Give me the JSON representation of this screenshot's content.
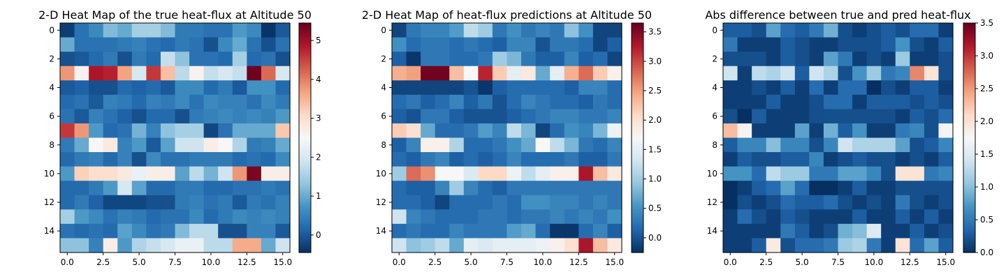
{
  "colormap": {
    "name": "RdBu_r",
    "stops": [
      "#053061",
      "#2166ac",
      "#4393c3",
      "#92c5de",
      "#d1e5f0",
      "#f7f7f7",
      "#fddbc7",
      "#f4a582",
      "#d6604d",
      "#b2182b",
      "#67001f"
    ]
  },
  "chart_data": [
    {
      "type": "heatmap",
      "title": "2-D Heat Map of the true heat-flux at Altitude 50",
      "x_ticks": [
        "0.0",
        "2.5",
        "5.0",
        "7.5",
        "10.0",
        "12.5",
        "15.0"
      ],
      "y_ticks": [
        "0",
        "2",
        "4",
        "6",
        "8",
        "10",
        "12",
        "14"
      ],
      "colorbar": {
        "vmin": -0.45,
        "vmax": 5.45,
        "ticks": [
          "0",
          "1",
          "2",
          "3",
          "4",
          "5"
        ]
      },
      "values": [
        [
          -0.3,
          0.3,
          0.6,
          1.2,
          1.0,
          1.5,
          1.5,
          1.2,
          0.4,
          0.4,
          0.3,
          0.3,
          0.8,
          0.6,
          -0.4,
          0.0
        ],
        [
          1.0,
          0.3,
          0.3,
          0.3,
          0.4,
          0.5,
          0.3,
          0.2,
          0.4,
          0.3,
          -0.1,
          0.6,
          1.0,
          0.3,
          -0.1,
          0.3
        ],
        [
          -0.1,
          0.0,
          0.2,
          0.4,
          -0.1,
          0.4,
          0.2,
          1.8,
          1.3,
          0.3,
          0.3,
          0.2,
          1.5,
          0.2,
          0.3,
          -0.1
        ],
        [
          3.8,
          2.6,
          4.9,
          4.8,
          3.7,
          2.0,
          4.6,
          3.4,
          1.7,
          2.6,
          1.8,
          2.0,
          1.8,
          5.4,
          4.2,
          2.0
        ],
        [
          0.0,
          0.1,
          -0.1,
          -0.1,
          0.2,
          0.1,
          0.2,
          0.0,
          0.6,
          0.6,
          0.2,
          0.4,
          0.0,
          0.7,
          0.7,
          0.2
        ],
        [
          0.2,
          0.3,
          0.0,
          0.5,
          0.4,
          0.2,
          0.5,
          0.4,
          0.6,
          0.3,
          0.6,
          0.5,
          0.5,
          0.3,
          0.6,
          0.4
        ],
        [
          0.3,
          0.0,
          0.5,
          0.3,
          0.1,
          -0.1,
          0.2,
          0.2,
          -0.1,
          0.4,
          0.5,
          0.6,
          0.5,
          0.6,
          0.5,
          0.8
        ],
        [
          4.6,
          3.8,
          0.8,
          0.2,
          0.3,
          1.1,
          0.5,
          1.3,
          1.5,
          1.5,
          -0.2,
          0.3,
          1.0,
          1.0,
          1.0,
          3.3
        ],
        [
          0.4,
          1.0,
          2.5,
          2.8,
          0.5,
          0.8,
          0.0,
          0.9,
          1.9,
          1.9,
          2.7,
          2.5,
          1.6,
          0.4,
          0.5,
          1.0
        ],
        [
          0.2,
          0.4,
          0.5,
          0.2,
          0.5,
          -0.1,
          0.6,
          0.3,
          0.3,
          0.4,
          0.4,
          0.4,
          0.2,
          0.3,
          0.2,
          0.6
        ],
        [
          0.8,
          3.2,
          3.0,
          3.0,
          2.8,
          2.3,
          2.7,
          2.7,
          0.9,
          1.7,
          1.1,
          1.9,
          3.8,
          5.3,
          2.7,
          2.7
        ],
        [
          0.2,
          0.2,
          0.4,
          0.8,
          2.0,
          0.9,
          0.2,
          0.2,
          0.4,
          0.4,
          0.2,
          0.2,
          0.3,
          0.3,
          0.4,
          0.3
        ],
        [
          0.2,
          0.4,
          0.1,
          -0.2,
          -0.2,
          -0.2,
          -0.1,
          -0.1,
          0.4,
          0.5,
          0.3,
          0.4,
          0.0,
          0.4,
          0.3,
          0.5
        ],
        [
          1.5,
          0.8,
          0.6,
          0.3,
          0.5,
          0.4,
          0.2,
          0.3,
          0.3,
          0.6,
          0.2,
          0.4,
          0.6,
          0.5,
          0.6,
          0.5
        ],
        [
          0.3,
          0.2,
          0.3,
          0.2,
          0.9,
          0.6,
          0.3,
          0.4,
          1.2,
          1.7,
          1.7,
          -0.1,
          -0.1,
          0.5,
          0.5,
          0.0
        ],
        [
          1.3,
          1.3,
          0.5,
          2.7,
          0.8,
          1.6,
          1.8,
          2.0,
          2.3,
          2.3,
          1.7,
          1.7,
          3.6,
          3.6,
          1.0,
          1.9
        ]
      ]
    },
    {
      "type": "heatmap",
      "title": "2-D Heat Map of heat-flux predictions at Altitude 50",
      "x_ticks": [
        "0.0",
        "2.5",
        "5.0",
        "7.5",
        "10.0",
        "12.5",
        "15.0"
      ],
      "y_ticks": [
        "0",
        "2",
        "4",
        "6",
        "8",
        "10",
        "12",
        "14"
      ],
      "colorbar": {
        "vmin": -0.25,
        "vmax": 3.65,
        "ticks": [
          "0.0",
          "0.5",
          "1.0",
          "1.5",
          "2.0",
          "2.5",
          "3.0",
          "3.5"
        ]
      },
      "values": [
        [
          -0.1,
          0.3,
          0.4,
          0.4,
          0.6,
          1.2,
          1.0,
          0.3,
          0.5,
          0.3,
          0.4,
          0.3,
          0.9,
          0.5,
          -0.1,
          -0.1
        ],
        [
          0.5,
          0.2,
          0.3,
          0.3,
          0.2,
          0.3,
          0.2,
          0.1,
          0.4,
          0.4,
          0.0,
          0.3,
          0.3,
          0.2,
          -0.1,
          0.1
        ],
        [
          0.1,
          -0.2,
          0.3,
          0.3,
          0.2,
          0.2,
          0.3,
          1.0,
          0.8,
          0.3,
          0.1,
          0.1,
          0.4,
          0.1,
          0.2,
          -0.1
        ],
        [
          2.4,
          2.5,
          3.6,
          3.6,
          2.3,
          1.7,
          3.2,
          2.2,
          1.5,
          1.9,
          0.7,
          1.5,
          2.4,
          2.8,
          2.2,
          1.8
        ],
        [
          -0.1,
          -0.1,
          -0.1,
          -0.1,
          -0.1,
          0.0,
          -0.2,
          0.1,
          0.2,
          0.2,
          0.2,
          0.2,
          0.1,
          0.4,
          0.4,
          0.2
        ],
        [
          0.2,
          0.3,
          0.1,
          0.2,
          0.4,
          0.1,
          0.3,
          0.0,
          0.2,
          0.4,
          0.3,
          0.2,
          0.2,
          0.1,
          0.3,
          0.2
        ],
        [
          0.1,
          0.0,
          0.3,
          0.3,
          0.1,
          0.0,
          0.0,
          0.0,
          0.1,
          0.2,
          0.3,
          0.4,
          0.4,
          0.3,
          0.3,
          0.4
        ],
        [
          2.2,
          2.0,
          0.7,
          0.2,
          0.2,
          0.3,
          0.6,
          0.4,
          1.2,
          0.8,
          -0.1,
          0.2,
          0.5,
          0.4,
          0.8,
          1.6
        ],
        [
          0.1,
          0.4,
          1.8,
          1.8,
          1.1,
          0.2,
          0.2,
          0.3,
          0.5,
          0.7,
          1.7,
          1.2,
          0.8,
          0.3,
          0.2,
          0.4
        ],
        [
          0.2,
          0.1,
          0.3,
          0.4,
          0.1,
          0.2,
          0.1,
          0.2,
          0.4,
          0.2,
          0.2,
          0.2,
          0.3,
          0.1,
          0.1,
          0.3
        ],
        [
          1.0,
          2.8,
          2.6,
          1.7,
          1.7,
          1.4,
          2.1,
          2.1,
          1.6,
          1.2,
          1.5,
          1.8,
          1.8,
          3.3,
          2.3,
          1.9
        ],
        [
          0.2,
          0.1,
          0.1,
          0.4,
          1.0,
          0.4,
          0.2,
          0.1,
          0.3,
          0.3,
          0.3,
          0.3,
          0.3,
          0.3,
          0.3,
          0.3
        ],
        [
          0.2,
          0.2,
          0.1,
          -0.1,
          0.2,
          0.2,
          0.2,
          0.3,
          0.2,
          0.5,
          0.5,
          0.4,
          0.4,
          0.3,
          0.4,
          0.3
        ],
        [
          1.3,
          0.4,
          0.3,
          0.2,
          0.2,
          0.2,
          0.3,
          0.3,
          0.2,
          0.3,
          0.3,
          0.4,
          0.3,
          0.4,
          0.3,
          0.5
        ],
        [
          0.2,
          0.3,
          0.2,
          0.2,
          0.4,
          0.3,
          0.3,
          0.3,
          0.6,
          0.7,
          0.2,
          -0.2,
          -0.2,
          0.2,
          0.4,
          0.1
        ],
        [
          1.3,
          0.9,
          1.0,
          1.2,
          0.7,
          1.5,
          1.4,
          1.5,
          1.5,
          1.5,
          1.6,
          1.8,
          2.0,
          3.3,
          2.3,
          1.9
        ]
      ]
    },
    {
      "type": "heatmap",
      "title": "Abs difference between true and pred heat-flux",
      "x_ticks": [
        "0.0",
        "2.5",
        "5.0",
        "7.5",
        "10.0",
        "12.5",
        "15.0"
      ],
      "y_ticks": [
        "0",
        "2",
        "4",
        "6",
        "8",
        "10",
        "12",
        "14"
      ],
      "colorbar": {
        "vmin": 0.0,
        "vmax": 3.5,
        "ticks": [
          "0.0",
          "0.5",
          "1.0",
          "1.5",
          "2.0",
          "2.5",
          "3.0",
          "3.5"
        ]
      },
      "values": [
        [
          0.3,
          0.3,
          0.2,
          0.8,
          0.4,
          0.3,
          0.5,
          0.9,
          0.2,
          0.1,
          0.2,
          0.3,
          0.2,
          0.4,
          0.4,
          0.1
        ],
        [
          0.5,
          0.1,
          0.1,
          0.1,
          0.3,
          0.2,
          0.1,
          0.1,
          0.2,
          0.2,
          0.2,
          0.3,
          0.7,
          0.2,
          0.1,
          0.3
        ],
        [
          0.2,
          0.2,
          0.2,
          0.1,
          0.3,
          0.2,
          0.1,
          0.8,
          0.5,
          0.1,
          0.2,
          0.1,
          1.1,
          0.1,
          0.1,
          0.2
        ],
        [
          1.4,
          0.1,
          1.3,
          1.2,
          1.4,
          0.3,
          1.4,
          1.2,
          0.2,
          0.7,
          1.1,
          0.5,
          0.6,
          2.6,
          2.0,
          0.2
        ],
        [
          0.1,
          0.1,
          0.2,
          0.1,
          0.3,
          0.1,
          0.4,
          0.1,
          0.4,
          0.4,
          0.0,
          0.2,
          0.1,
          0.3,
          0.3,
          0.1
        ],
        [
          0.1,
          0.1,
          0.1,
          0.3,
          0.1,
          0.1,
          0.2,
          0.4,
          0.4,
          0.1,
          0.3,
          0.3,
          0.3,
          0.2,
          0.3,
          0.2
        ],
        [
          0.2,
          0.0,
          0.3,
          0.1,
          0.1,
          0.1,
          0.2,
          0.2,
          0.2,
          0.2,
          0.2,
          0.2,
          0.1,
          0.3,
          0.2,
          0.4
        ],
        [
          2.3,
          1.8,
          0.1,
          0.1,
          0.1,
          0.8,
          0.1,
          0.9,
          0.3,
          0.7,
          0.1,
          0.1,
          0.5,
          0.6,
          0.2,
          1.7
        ],
        [
          0.3,
          0.6,
          0.6,
          1.0,
          0.6,
          0.6,
          0.2,
          0.6,
          1.4,
          1.2,
          1.2,
          1.2,
          0.8,
          0.2,
          0.3,
          0.6
        ],
        [
          0.1,
          0.3,
          0.2,
          0.2,
          0.3,
          0.3,
          0.6,
          0.1,
          0.2,
          0.3,
          0.2,
          0.2,
          0.1,
          0.2,
          0.1,
          0.3
        ],
        [
          0.7,
          0.7,
          0.4,
          1.3,
          1.1,
          1.1,
          0.5,
          0.5,
          0.8,
          0.8,
          0.6,
          0.2,
          2.0,
          2.0,
          0.5,
          0.6
        ],
        [
          0.0,
          0.1,
          0.3,
          0.4,
          0.8,
          0.4,
          0.0,
          0.0,
          0.1,
          0.3,
          0.1,
          0.1,
          0.2,
          0.2,
          0.2,
          0.2
        ],
        [
          0.0,
          0.2,
          0.1,
          0.2,
          0.4,
          0.3,
          0.3,
          0.4,
          0.2,
          0.1,
          0.2,
          0.1,
          0.5,
          0.2,
          0.1,
          0.2
        ],
        [
          0.1,
          0.4,
          0.2,
          0.1,
          0.3,
          0.2,
          0.1,
          0.1,
          0.1,
          0.3,
          0.1,
          0.1,
          0.3,
          0.1,
          0.3,
          0.1
        ],
        [
          0.1,
          0.1,
          0.1,
          0.1,
          0.5,
          0.3,
          0.1,
          0.2,
          0.9,
          1.0,
          1.5,
          0.1,
          0.1,
          0.3,
          0.1,
          0.2
        ],
        [
          0.1,
          0.1,
          0.3,
          1.9,
          0.2,
          0.4,
          0.4,
          0.5,
          1.1,
          1.2,
          0.5,
          0.1,
          2.0,
          0.4,
          0.8,
          0.3
        ]
      ]
    }
  ]
}
